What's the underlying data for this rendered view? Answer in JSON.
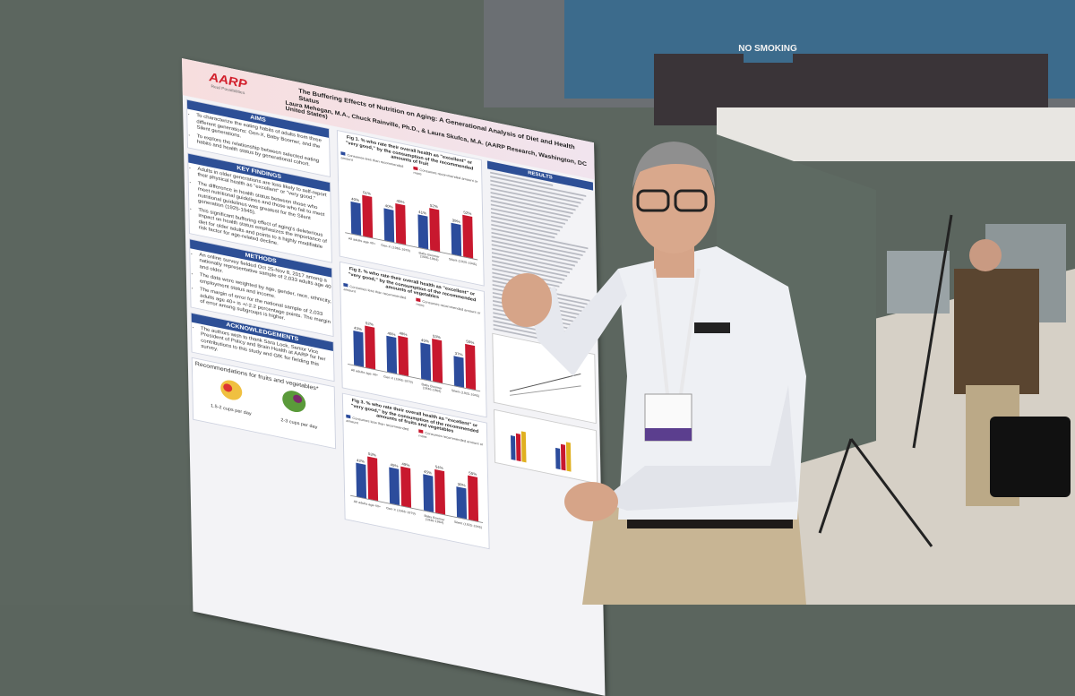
{
  "scene": {
    "sign": "NO SMOKING"
  },
  "poster": {
    "logo": "AARP",
    "tagline": "Real Possibilities",
    "title": "The Buffering Effects of Nutrition on Aging: A Generational Analysis of Diet and Health Status",
    "authors": "Laura Mehegan, M.A., Chuck Rainville, Ph.D., & Laura Skufca, M.A. (AARP Research, Washington, DC United States)",
    "sections": [
      {
        "heading": "AIMS",
        "items": [
          "To characterize the eating habits of adults from three different generations: Gen-X, Baby Boomer, and the Silent generations.",
          "To explore the relationship between selected eating habits and health status by generational cohort."
        ]
      },
      {
        "heading": "KEY FINDINGS",
        "items": [
          "Adults in older generations are less likely to self-report their physical health as \"excellent\" or \"very good.\"",
          "The difference in health status between those who meet nutritional guidelines and those who fail to meet nutritional guidelines was greatest for the Silent generation (1925-1945).",
          "This significant buffering effect of aging's deleterious impact on health status emphasizes the importance of diet for older adults and points to a highly modifiable risk factor for age-related decline."
        ]
      },
      {
        "heading": "METHODS",
        "items": [
          "An online survey fielded Oct 25-Nov 8, 2017 among a nationally representative sample of 2,033 adults age 40 and older.",
          "The data were weighted by age, gender, race, ethnicity, employment status and income.",
          "The margin of error for the national sample of 2,033 adults age 40+ is +/-2.2 percentage points. The margin of error among subgroups is higher."
        ]
      },
      {
        "heading": "ACKNOWLEDGEMENTS",
        "items": [
          "The authors wish to thank Sara Lock, Senior Vice President of Policy and Brain Health at AARP for her contributions to this study and GfK for fielding this survey."
        ]
      }
    ],
    "recommendations": {
      "heading": "Recommendations for fruits and vegetables*",
      "fruit": "1.5-2 cups per day",
      "vegetables": "2-3 cups per day"
    },
    "results_heading": "RESULTS",
    "figures": [
      {
        "title": "Fig 1. % who rate their overall health as \"excellent\" or \"very good,\" by the consumption of the recommended amounts of fruit",
        "categories": [
          "All adults age 40+",
          "Gen-X (1965-1979)",
          "Baby Boomer (1946-1964)",
          "Silent (1925-1945)"
        ],
        "ylim": [
          0,
          70
        ],
        "series": [
          {
            "name": "Consumes less than recommended amount",
            "color": "#2c4c9c",
            "values": [
              40,
              40,
              41,
              39
            ],
            "value_labels": [
              "40%",
              "40%",
              "41%",
              "39%"
            ]
          },
          {
            "name": "Consumes recommended amount or more",
            "color": "#c8182e",
            "values": [
              51,
              49,
              52,
              52
            ],
            "value_labels": [
              "51%",
              "49%",
              "52%",
              "52%"
            ]
          }
        ]
      },
      {
        "title": "Fig 2. % who rate their overall health as \"excellent\" or \"very good,\" by the consumption of the recommended amounts of vegetables",
        "categories": [
          "All adults age 40+",
          "Gen-X (1965-1979)",
          "Baby Boomer (1946-1964)",
          "Silent (1925-1945)"
        ],
        "ylim": [
          0,
          70
        ],
        "series": [
          {
            "name": "Consumes less than recommended amount",
            "color": "#2c4c9c",
            "values": [
              43,
              45,
              45,
              37
            ],
            "value_labels": [
              "43%",
              "45%",
              "45%",
              "37%"
            ]
          },
          {
            "name": "Consumes recommended amount or more",
            "color": "#c8182e",
            "values": [
              52,
              48,
              53,
              55
            ],
            "value_labels": [
              "52%",
              "48%",
              "53%",
              "55%"
            ]
          }
        ]
      },
      {
        "title": "Fig 3. % who rate their overall health as \"excellent\" or \"very good,\" by the consumption of the recommended amounts of fruits and vegetables",
        "categories": [
          "All adults age 40+",
          "Gen-X (1965-1979)",
          "Baby Boomer (1946-1964)",
          "Silent (1925-1945)"
        ],
        "ylim": [
          0,
          70
        ],
        "series": [
          {
            "name": "Consumes less than recommended amount",
            "color": "#2c4c9c",
            "values": [
              42,
              45,
              45,
              38
            ],
            "value_labels": [
              "42%",
              "45%",
              "45%",
              "38%"
            ]
          },
          {
            "name": "Consumes recommended amount or more",
            "color": "#c8182e",
            "values": [
              53,
              49,
              54,
              55
            ],
            "value_labels": [
              "53%",
              "49%",
              "54%",
              "55%"
            ]
          }
        ]
      }
    ]
  }
}
